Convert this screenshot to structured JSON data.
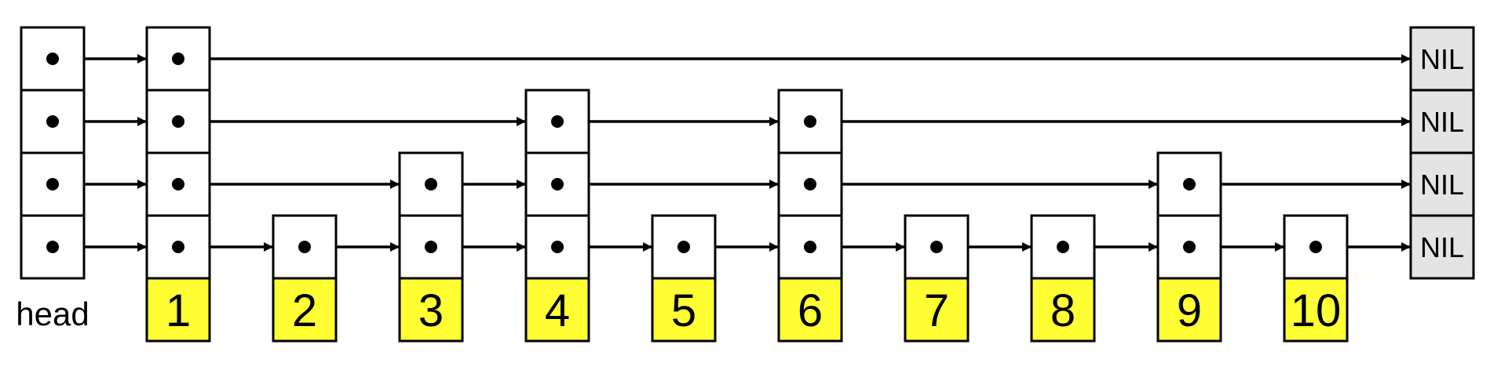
{
  "diagram": {
    "head_label": "head",
    "nil_label": "NIL",
    "levels": 4,
    "nodes": [
      {
        "key": "1",
        "height": 4
      },
      {
        "key": "2",
        "height": 1
      },
      {
        "key": "3",
        "height": 2
      },
      {
        "key": "4",
        "height": 3
      },
      {
        "key": "5",
        "height": 1
      },
      {
        "key": "6",
        "height": 3
      },
      {
        "key": "7",
        "height": 1
      },
      {
        "key": "8",
        "height": 1
      },
      {
        "key": "9",
        "height": 2
      },
      {
        "key": "10",
        "height": 1
      }
    ],
    "colors": {
      "key_fill": "#ffff33",
      "nil_fill": "#e4e4e4",
      "cell_fill": "#ffffff",
      "stroke": "#000000"
    }
  }
}
